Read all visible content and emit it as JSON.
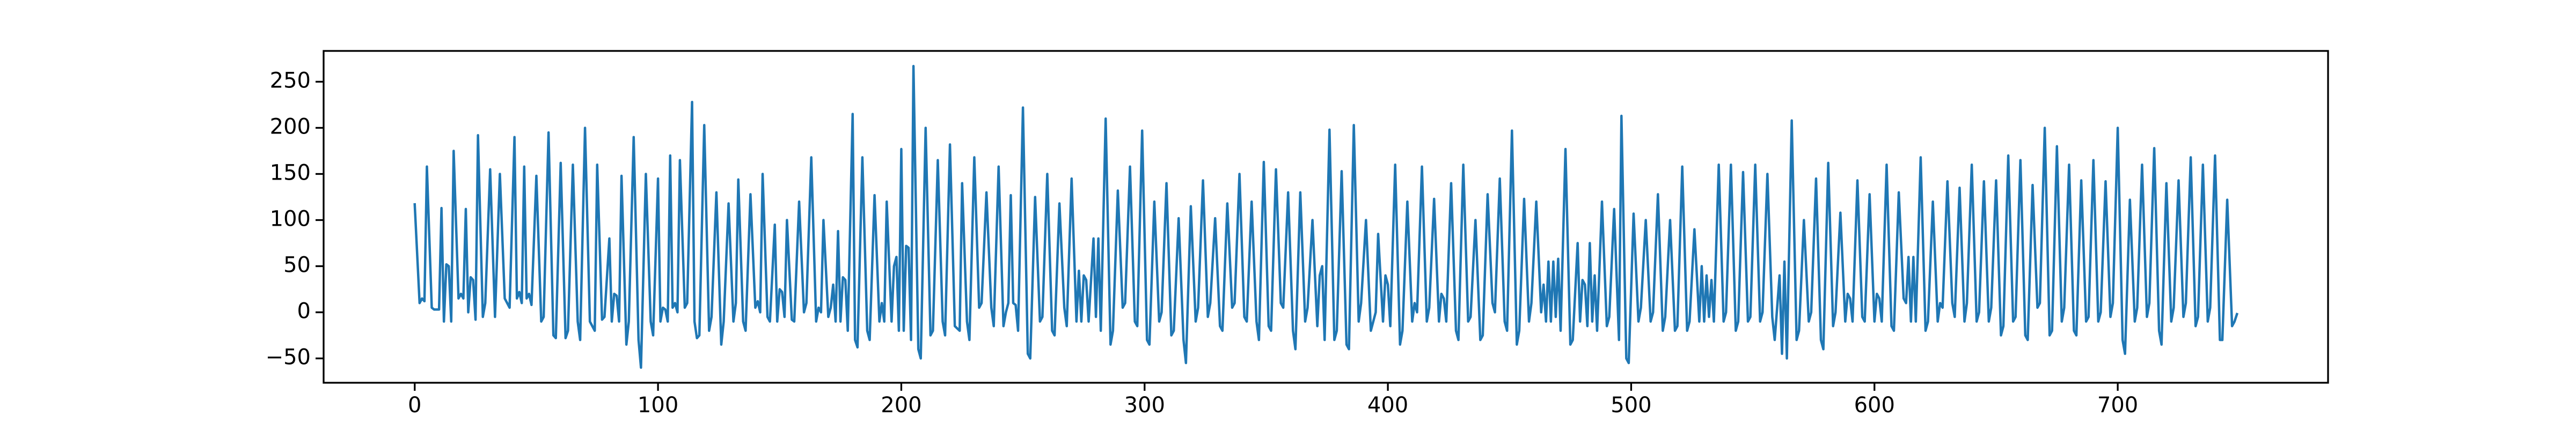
{
  "chart_data": {
    "type": "line",
    "color": "#1f77b4",
    "x": [
      0,
      2,
      3,
      4,
      5,
      7,
      8,
      10,
      11,
      12,
      13,
      14,
      15,
      16,
      18,
      19,
      20,
      21,
      22,
      23,
      24,
      25,
      26,
      28,
      29,
      31,
      33,
      35,
      37,
      39,
      41,
      42,
      43,
      44,
      45,
      46,
      47,
      48,
      50,
      52,
      53,
      55,
      57,
      58,
      60,
      62,
      63,
      65,
      67,
      68,
      70,
      72,
      74,
      75,
      77,
      78,
      80,
      81,
      82,
      83,
      84,
      85,
      87,
      88,
      90,
      92,
      93,
      95,
      97,
      98,
      100,
      101,
      102,
      103,
      104,
      105,
      106,
      107,
      108,
      109,
      111,
      112,
      114,
      115,
      116,
      117,
      119,
      121,
      122,
      124,
      126,
      127,
      129,
      131,
      132,
      133,
      135,
      136,
      138,
      140,
      141,
      142,
      143,
      145,
      146,
      148,
      149,
      150,
      151,
      152,
      153,
      155,
      156,
      158,
      160,
      161,
      163,
      165,
      166,
      167,
      168,
      170,
      171,
      172,
      173,
      174,
      175,
      176,
      177,
      178,
      180,
      181,
      182,
      184,
      186,
      187,
      189,
      191,
      192,
      193,
      194,
      196,
      197,
      198,
      199,
      200,
      201,
      202,
      203,
      204,
      205,
      207,
      208,
      210,
      212,
      213,
      215,
      217,
      218,
      220,
      222,
      224,
      225,
      227,
      228,
      230,
      232,
      233,
      235,
      237,
      238,
      240,
      242,
      243,
      244,
      245,
      246,
      247,
      248,
      250,
      252,
      253,
      255,
      257,
      258,
      260,
      262,
      263,
      265,
      267,
      268,
      270,
      272,
      273,
      274,
      275,
      276,
      277,
      279,
      280,
      281,
      282,
      284,
      286,
      287,
      289,
      291,
      292,
      294,
      296,
      297,
      299,
      301,
      302,
      304,
      306,
      307,
      309,
      311,
      312,
      314,
      316,
      317,
      319,
      321,
      322,
      324,
      326,
      327,
      329,
      331,
      332,
      334,
      336,
      337,
      339,
      341,
      342,
      344,
      346,
      347,
      349,
      351,
      352,
      354,
      356,
      357,
      359,
      361,
      362,
      364,
      366,
      367,
      369,
      371,
      372,
      373,
      374,
      376,
      378,
      379,
      381,
      383,
      384,
      386,
      388,
      389,
      391,
      393,
      395,
      396,
      398,
      399,
      400,
      401,
      403,
      405,
      406,
      408,
      410,
      411,
      412,
      414,
      416,
      417,
      419,
      421,
      422,
      423,
      424,
      426,
      428,
      429,
      431,
      433,
      434,
      436,
      438,
      439,
      441,
      443,
      444,
      446,
      448,
      449,
      451,
      453,
      454,
      456,
      458,
      459,
      461,
      463,
      464,
      465,
      466,
      467,
      468,
      469,
      470,
      471,
      473,
      475,
      476,
      478,
      479,
      480,
      481,
      482,
      483,
      484,
      485,
      486,
      488,
      490,
      491,
      493,
      495,
      496,
      498,
      499,
      501,
      503,
      504,
      506,
      508,
      509,
      511,
      513,
      514,
      516,
      518,
      519,
      521,
      523,
      524,
      526,
      528,
      529,
      530,
      531,
      532,
      533,
      534,
      536,
      538,
      539,
      541,
      543,
      544,
      546,
      548,
      549,
      551,
      553,
      554,
      556,
      558,
      559,
      561,
      562,
      563,
      564,
      566,
      568,
      569,
      571,
      573,
      574,
      576,
      578,
      579,
      581,
      583,
      584,
      586,
      588,
      589,
      590,
      591,
      593,
      595,
      596,
      598,
      600,
      601,
      602,
      603,
      605,
      607,
      608,
      610,
      612,
      613,
      614,
      615,
      616,
      617,
      619,
      621,
      622,
      624,
      626,
      627,
      628,
      630,
      632,
      633,
      635,
      637,
      638,
      640,
      642,
      643,
      645,
      647,
      648,
      650,
      652,
      653,
      655,
      657,
      658,
      660,
      662,
      663,
      665,
      667,
      668,
      670,
      672,
      673,
      675,
      677,
      678,
      680,
      682,
      683,
      685,
      687,
      688,
      690,
      692,
      693,
      695,
      697,
      698,
      700,
      702,
      703,
      705,
      707,
      708,
      710,
      712,
      713,
      715,
      717,
      718,
      720,
      722,
      723,
      725,
      727,
      728,
      730,
      732,
      733,
      735,
      737,
      738,
      740,
      742,
      743,
      745,
      747,
      748,
      749
    ],
    "values": [
      117,
      10,
      15,
      12,
      158,
      5,
      3,
      3,
      113,
      -10,
      52,
      50,
      -10,
      175,
      15,
      20,
      15,
      112,
      0,
      38,
      35,
      -8,
      192,
      -5,
      10,
      155,
      -5,
      150,
      15,
      5,
      190,
      15,
      22,
      10,
      158,
      15,
      20,
      8,
      148,
      -10,
      -5,
      195,
      -25,
      -28,
      162,
      -28,
      -20,
      160,
      -10,
      -30,
      200,
      -10,
      -20,
      160,
      -8,
      -5,
      80,
      -10,
      20,
      18,
      -10,
      148,
      -35,
      -10,
      190,
      -30,
      -60,
      150,
      -10,
      -25,
      145,
      -10,
      5,
      3,
      -10,
      170,
      5,
      10,
      0,
      165,
      5,
      10,
      228,
      -10,
      -28,
      -25,
      203,
      -20,
      -5,
      130,
      -35,
      -10,
      118,
      -10,
      10,
      144,
      -10,
      -20,
      128,
      5,
      12,
      0,
      150,
      -5,
      -10,
      95,
      -10,
      25,
      22,
      -5,
      100,
      -8,
      -10,
      120,
      0,
      10,
      168,
      -10,
      5,
      0,
      100,
      -5,
      5,
      30,
      -10,
      88,
      -10,
      38,
      35,
      -20,
      215,
      -30,
      -38,
      168,
      -20,
      -30,
      127,
      -10,
      10,
      -10,
      120,
      -10,
      50,
      60,
      -20,
      177,
      -20,
      72,
      70,
      -30,
      267,
      -40,
      -50,
      200,
      -25,
      -20,
      165,
      -10,
      -25,
      182,
      -15,
      -20,
      140,
      -10,
      -30,
      168,
      5,
      10,
      130,
      5,
      -15,
      158,
      -15,
      0,
      10,
      127,
      10,
      8,
      -20,
      222,
      -45,
      -50,
      125,
      -10,
      -5,
      150,
      -20,
      -25,
      118,
      5,
      -15,
      145,
      -10,
      45,
      -10,
      40,
      35,
      -10,
      80,
      -5,
      80,
      -20,
      210,
      -35,
      -20,
      132,
      5,
      10,
      158,
      -10,
      -15,
      197,
      -30,
      -35,
      120,
      -10,
      0,
      140,
      -25,
      -20,
      102,
      -30,
      -55,
      115,
      -10,
      5,
      143,
      -5,
      10,
      102,
      -15,
      -20,
      118,
      5,
      10,
      150,
      -5,
      -10,
      120,
      -10,
      -30,
      163,
      -15,
      -20,
      155,
      10,
      5,
      130,
      -20,
      -40,
      130,
      -10,
      5,
      100,
      -15,
      40,
      50,
      -30,
      198,
      -30,
      -20,
      153,
      -35,
      -40,
      203,
      -10,
      10,
      100,
      -20,
      0,
      85,
      -10,
      40,
      30,
      -15,
      160,
      -35,
      -20,
      120,
      -10,
      10,
      0,
      158,
      -10,
      5,
      123,
      -10,
      20,
      15,
      -10,
      140,
      -20,
      -30,
      160,
      -10,
      -5,
      100,
      -30,
      -25,
      128,
      10,
      0,
      145,
      -10,
      -20,
      197,
      -35,
      -20,
      123,
      -10,
      10,
      120,
      0,
      30,
      -10,
      55,
      -10,
      55,
      -5,
      58,
      -20,
      177,
      -35,
      -30,
      75,
      -10,
      35,
      30,
      -15,
      75,
      -10,
      40,
      -20,
      120,
      -15,
      -5,
      112,
      -30,
      213,
      -50,
      -55,
      107,
      -10,
      5,
      100,
      -10,
      0,
      128,
      -20,
      -5,
      100,
      -20,
      -15,
      158,
      -20,
      -10,
      90,
      -10,
      50,
      -10,
      40,
      -5,
      35,
      -10,
      160,
      -10,
      0,
      160,
      -20,
      -10,
      152,
      -10,
      -5,
      160,
      -10,
      0,
      150,
      -5,
      -30,
      40,
      -45,
      55,
      -50,
      208,
      -30,
      -20,
      100,
      -10,
      0,
      145,
      -30,
      -40,
      162,
      -15,
      0,
      108,
      -10,
      20,
      15,
      -10,
      143,
      -5,
      -10,
      128,
      -10,
      20,
      15,
      -10,
      160,
      -15,
      -20,
      130,
      15,
      10,
      60,
      -10,
      60,
      -10,
      168,
      -20,
      -10,
      120,
      -10,
      10,
      5,
      142,
      10,
      -5,
      135,
      -10,
      10,
      160,
      -10,
      0,
      142,
      -10,
      5,
      143,
      -25,
      -15,
      170,
      -10,
      -5,
      165,
      -25,
      -30,
      138,
      5,
      10,
      200,
      -25,
      -20,
      180,
      -10,
      5,
      160,
      -20,
      -25,
      143,
      -10,
      -5,
      165,
      -10,
      0,
      142,
      -5,
      10,
      200,
      -30,
      -45,
      122,
      -10,
      5,
      160,
      -5,
      10,
      178,
      -20,
      -35,
      140,
      -10,
      5,
      143,
      -5,
      10,
      168,
      -15,
      -5,
      160,
      -10,
      5,
      170,
      -30,
      -30,
      122,
      -15,
      -10,
      -2
    ],
    "xlim": [
      -37.45,
      786.45
    ],
    "xticks": [
      0,
      100,
      200,
      300,
      400,
      500,
      600,
      700
    ],
    "ylim": [
      -76.4,
      283.4
    ],
    "yticks": [
      {
        "value": -50,
        "label": "−50"
      },
      0,
      50,
      100,
      150,
      200,
      250
    ]
  }
}
